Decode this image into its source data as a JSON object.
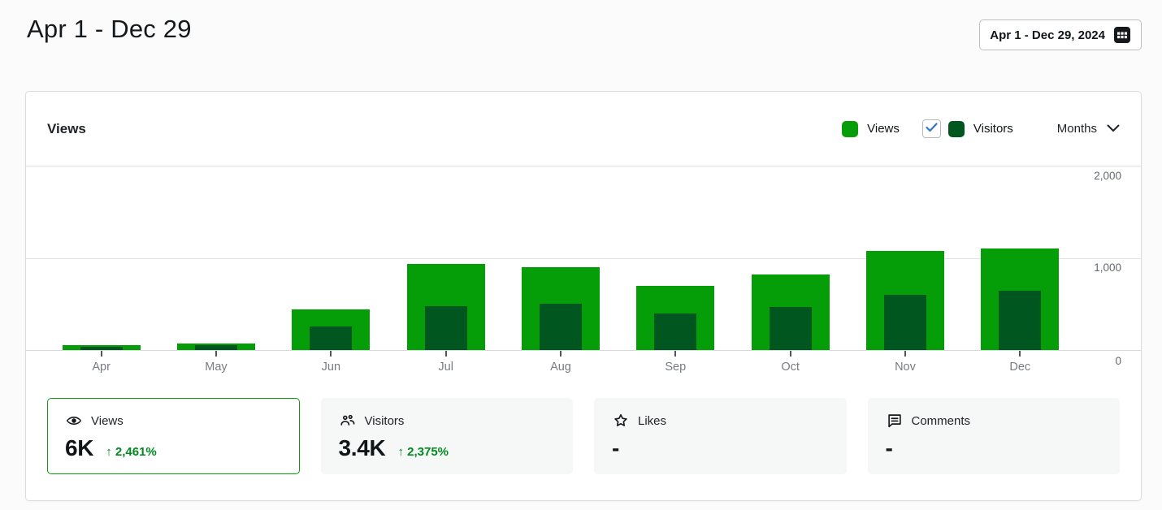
{
  "page": {
    "title": "Apr 1 - Dec 29"
  },
  "date_picker": {
    "label": "Apr 1 - Dec 29, 2024"
  },
  "panel": {
    "title": "Views",
    "legend": {
      "views": {
        "label": "Views",
        "color": "#069e08"
      },
      "visitors": {
        "label": "Visitors",
        "color": "#00561f",
        "checked": true
      }
    },
    "interval_dropdown": {
      "value": "Months"
    }
  },
  "chart_data": {
    "type": "bar",
    "title": "Views",
    "categories": [
      "Apr",
      "May",
      "Jun",
      "Jul",
      "Aug",
      "Sep",
      "Oct",
      "Nov",
      "Dec"
    ],
    "series": [
      {
        "name": "Views",
        "color": "#069e08",
        "values": [
          50,
          70,
          440,
          935,
          900,
          700,
          820,
          1080,
          1110
        ]
      },
      {
        "name": "Visitors",
        "color": "#00561f",
        "values": [
          35,
          55,
          255,
          480,
          505,
          400,
          470,
          600,
          645
        ]
      }
    ],
    "xlabel": "",
    "ylabel": "",
    "ylim": [
      0,
      2000
    ],
    "yticks": [
      "2,000",
      "1,000",
      "0"
    ],
    "grid": true,
    "legend_position": "top-right"
  },
  "stats": [
    {
      "id": "views",
      "label": "Views",
      "value": "6K",
      "trend": "↑ 2,461%",
      "selected": true
    },
    {
      "id": "visitors",
      "label": "Visitors",
      "value": "3.4K",
      "trend": "↑ 2,375%",
      "selected": false
    },
    {
      "id": "likes",
      "label": "Likes",
      "value": "-",
      "trend": "",
      "selected": false
    },
    {
      "id": "comments",
      "label": "Comments",
      "value": "-",
      "trend": "",
      "selected": false
    }
  ],
  "colors": {
    "views_bar": "#069e08",
    "visitors_bar": "#00561f",
    "trend_green": "#008a20",
    "checkbox_check": "#3075c9",
    "card_selected_border": "#069e08"
  }
}
